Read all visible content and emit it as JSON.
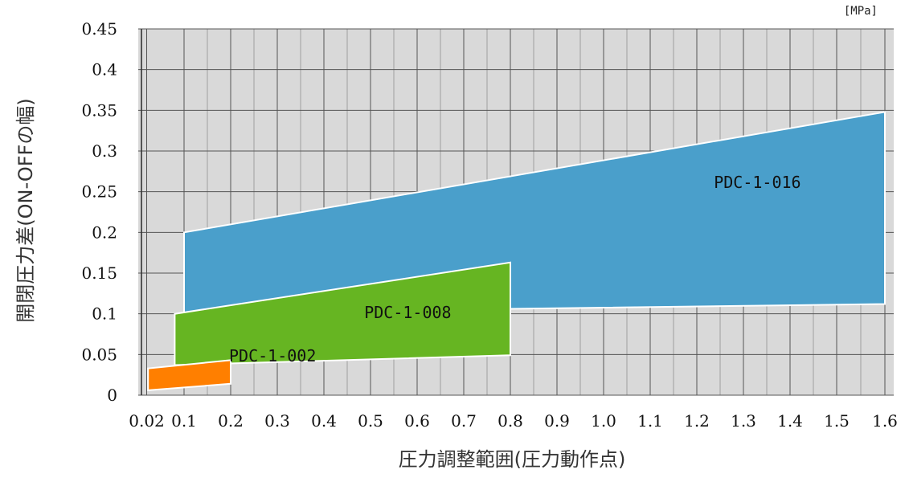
{
  "chart_data": {
    "type": "area",
    "unit": "[MPa]",
    "xlabel": "圧力調整範囲(圧力動作点)",
    "ylabel": "開閉圧力差(ON-OFFの幅)",
    "x_ticks": [
      "0.02",
      "0.1",
      "0.2",
      "0.3",
      "0.4",
      "0.5",
      "0.6",
      "0.7",
      "0.8",
      "0.9",
      "1.0",
      "1.1",
      "1.2",
      "1.3",
      "1.4",
      "1.5",
      "1.6"
    ],
    "x_tick_values": [
      0.02,
      0.1,
      0.2,
      0.3,
      0.4,
      0.5,
      0.6,
      0.7,
      0.8,
      0.9,
      1.0,
      1.1,
      1.2,
      1.3,
      1.4,
      1.5,
      1.6
    ],
    "y_ticks": [
      "0",
      "0.05",
      "0.1",
      "0.15",
      "0.2",
      "0.25",
      "0.3",
      "0.35",
      "0.4",
      "0.45"
    ],
    "y_tick_values": [
      0,
      0.05,
      0.1,
      0.15,
      0.2,
      0.25,
      0.3,
      0.35,
      0.4,
      0.45
    ],
    "ylim": [
      0,
      0.45
    ],
    "grid": true,
    "series": [
      {
        "name": "PDC-1-016",
        "color": "#4a9fcb",
        "polygon": [
          [
            0.1,
            0.101
          ],
          [
            0.1,
            0.2
          ],
          [
            1.6,
            0.348
          ],
          [
            1.6,
            0.112
          ]
        ],
        "label_at": [
          1.33,
          0.26
        ]
      },
      {
        "name": "PDC-1-008",
        "color": "#66b522",
        "polygon": [
          [
            0.08,
            0.037
          ],
          [
            0.08,
            0.1
          ],
          [
            0.8,
            0.163
          ],
          [
            0.8,
            0.049
          ]
        ],
        "label_at": [
          0.58,
          0.1
        ]
      },
      {
        "name": "PDC-1-002",
        "color": "#ff7f00",
        "polygon": [
          [
            0.023,
            0.006
          ],
          [
            0.023,
            0.033
          ],
          [
            0.2,
            0.043
          ],
          [
            0.2,
            0.014
          ]
        ],
        "label_at": [
          0.29,
          0.047
        ]
      }
    ]
  }
}
